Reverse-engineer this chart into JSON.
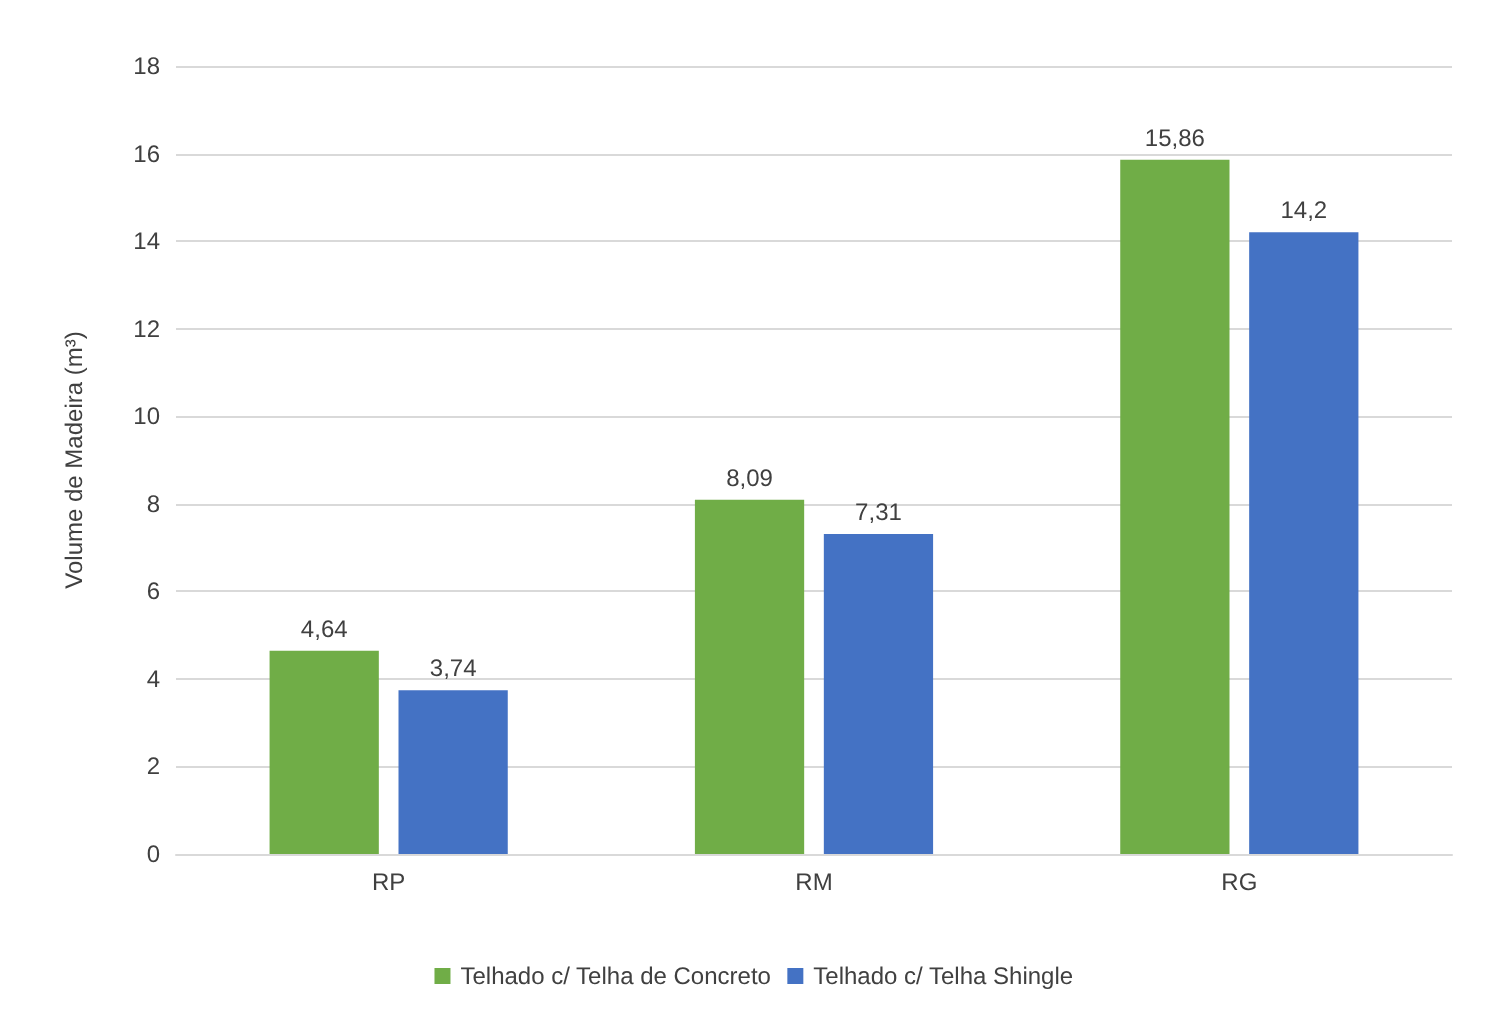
{
  "chart_data": {
    "type": "bar",
    "ylabel": "Volume de Madeira (m³)",
    "categories": [
      "RP",
      "RM",
      "RG"
    ],
    "series": [
      {
        "name": "Telhado c/ Telha de Concreto",
        "color": "#70ad47",
        "values": [
          4.64,
          8.09,
          15.86
        ],
        "value_labels": [
          "4,64",
          "8,09",
          "15,86"
        ]
      },
      {
        "name": "Telhado c/ Telha Shingle",
        "color": "#4472c4",
        "values": [
          3.74,
          7.31,
          14.2
        ],
        "value_labels": [
          "3,74",
          "7,31",
          "14,2"
        ]
      }
    ],
    "ylim": [
      0,
      18
    ],
    "yticks": [
      0,
      2,
      4,
      6,
      8,
      10,
      12,
      14,
      16,
      18
    ],
    "grid": "y",
    "legend": "bottom"
  }
}
